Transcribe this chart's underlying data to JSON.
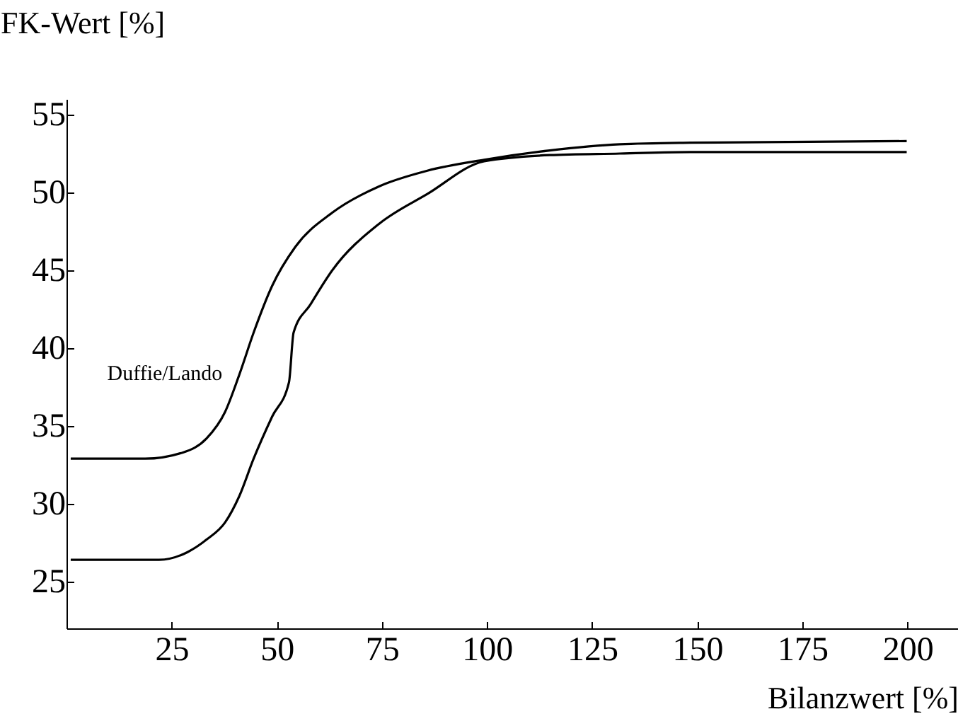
{
  "chart_data": {
    "type": "line",
    "xlabel": "Bilanzwert [%]",
    "ylabel": "FK-Wert [%]",
    "xlim": [
      0,
      212
    ],
    "ylim": [
      22,
      56
    ],
    "xticks": [
      25,
      50,
      75,
      100,
      125,
      150,
      175,
      200
    ],
    "yticks": [
      25,
      30,
      35,
      40,
      45,
      50,
      55
    ],
    "grid": false,
    "marker": "none",
    "line_style": "solid",
    "series": [
      {
        "name": "Duffie/Lando",
        "color": "#000000",
        "x": [
          1,
          18.7,
          27.7,
          33.3,
          37.7,
          41.1,
          44.5,
          48.9,
          54.4,
          63.2,
          74.4,
          85.8,
          99.3,
          114.9,
          131.6,
          148.4,
          199.8
        ],
        "values": [
          32.9,
          32.9,
          33.3,
          34.2,
          35.9,
          38.3,
          41,
          44,
          46.5,
          48.7,
          50.4,
          51.4,
          52.1,
          52.7,
          53.1,
          53.2,
          53.3
        ]
      },
      {
        "color": "#000000",
        "x": [
          1,
          22,
          28.8,
          33.3,
          37.7,
          41.1,
          44.5,
          48.9,
          52.9,
          54,
          58,
          63.2,
          74.4,
          85.8,
          99.3,
          114.9,
          131.6,
          148.4,
          199.8
        ],
        "values": [
          26.4,
          26.4,
          26.9,
          27.7,
          28.8,
          30.5,
          32.9,
          35.6,
          37.8,
          41,
          42.8,
          45,
          48,
          49.9,
          52,
          52.4,
          52.5,
          52.6,
          52.6
        ]
      }
    ]
  }
}
